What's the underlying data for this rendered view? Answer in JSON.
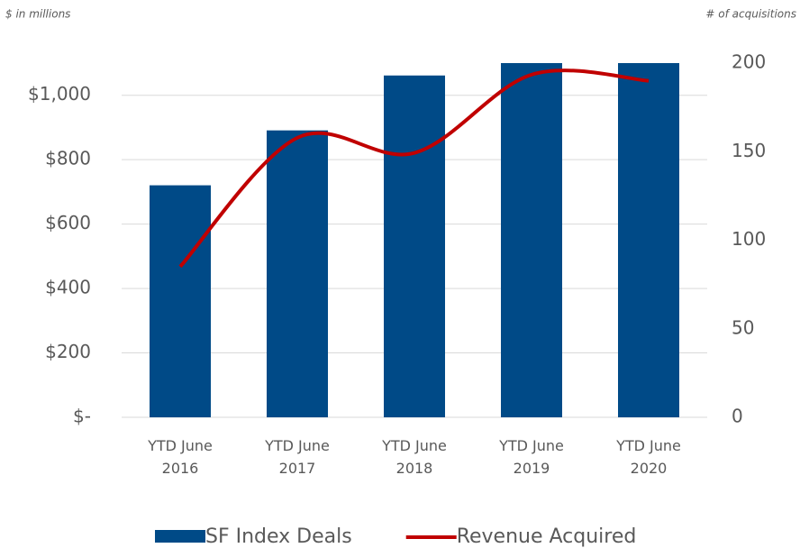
{
  "chart_data": {
    "type": "bar-line",
    "subtitle_left": "$ in millions",
    "subtitle_right": "# of acquisitions",
    "categories": [
      "YTD June 2016",
      "YTD June 2017",
      "YTD June 2018",
      "YTD June 2019",
      "YTD June 2020"
    ],
    "series": [
      {
        "name": "SF Index Deals",
        "type": "bar",
        "axis": "y2",
        "color": "#004a87",
        "values": [
          131,
          162,
          193,
          200,
          200
        ]
      },
      {
        "name": "Revenue Acquired",
        "type": "line",
        "axis": "y",
        "color": "#c00000",
        "values": [
          468,
          868,
          821,
          1064,
          1045
        ]
      }
    ],
    "ylim": [
      0,
      1100
    ],
    "yticks": [
      {
        "value": 0,
        "label": "$-"
      },
      {
        "value": 200,
        "label": "$200"
      },
      {
        "value": 400,
        "label": "$400"
      },
      {
        "value": 600,
        "label": "$600"
      },
      {
        "value": 800,
        "label": "$800"
      },
      {
        "value": 1000,
        "label": "$1,000"
      }
    ],
    "y2lim": [
      0,
      200
    ],
    "y2ticks": [
      0,
      50,
      100,
      150,
      200
    ],
    "grid": true,
    "legend": "bottom"
  }
}
